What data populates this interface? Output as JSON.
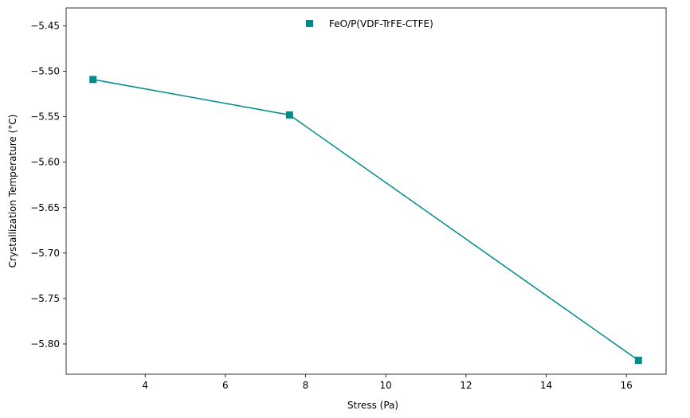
{
  "chart_data": {
    "type": "line",
    "title": "",
    "xlabel": "Stress (Pa)",
    "ylabel": "Crystallization Temperature (°C)",
    "xlim": [
      2.03,
      16.99
    ],
    "ylim": [
      -5.8333,
      -5.4303
    ],
    "xticks": [
      4,
      6,
      8,
      10,
      12,
      14,
      16
    ],
    "xtick_labels": [
      "4",
      "6",
      "8",
      "10",
      "12",
      "14",
      "16"
    ],
    "yticks": [
      -5.45,
      -5.5,
      -5.55,
      -5.6,
      -5.65,
      -5.7,
      -5.75,
      -5.8
    ],
    "ytick_labels": [
      "−5.45",
      "−5.50",
      "−5.55",
      "−5.60",
      "−5.65",
      "−5.70",
      "−5.75",
      "−5.80"
    ],
    "grid": false,
    "legend_position": "upper-center",
    "series": [
      {
        "name": "FeO/P(VDF-TrFE-CTFE)",
        "color": "#008b8b",
        "marker": "square",
        "x": [
          2.7,
          7.6,
          16.3
        ],
        "y": [
          -5.509,
          -5.548,
          -5.818
        ]
      }
    ]
  }
}
